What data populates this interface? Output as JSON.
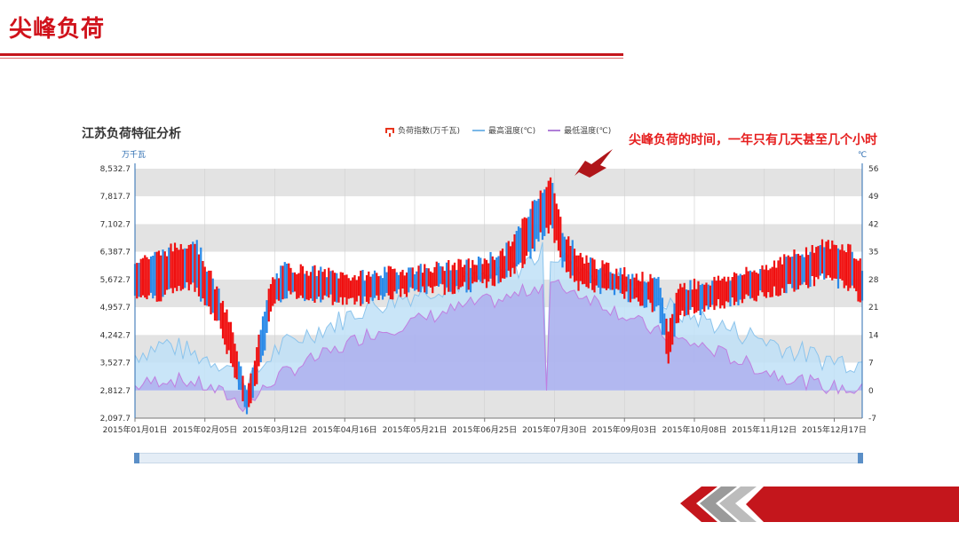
{
  "slide": {
    "title": "尖峰负荷",
    "callout": "尖峰负荷的时间，一年只有几天甚至几个小时"
  },
  "chart_data": {
    "type": "bar",
    "title": "江苏负荷特征分析",
    "left_unit": "万千瓦",
    "right_unit": "℃",
    "legend": [
      {
        "label": "负荷指数(万千瓦)",
        "color": "#e8341c",
        "icon": "bar-icon"
      },
      {
        "label": "最高温度(℃)",
        "color": "#7ab8e8",
        "icon": "line-icon"
      },
      {
        "label": "最低温度(℃)",
        "color": "#b07fd8",
        "icon": "line-icon"
      }
    ],
    "y_left_ticks": [
      "8,532.7",
      "7,817.7",
      "7,102.7",
      "6,387.7",
      "5,672.7",
      "4,957.7",
      "4,242.7",
      "3,527.7",
      "2,812.7",
      "2,097.7"
    ],
    "y_right_ticks": [
      "56",
      "49",
      "42",
      "35",
      "28",
      "21",
      "14",
      "7",
      "0",
      "-7"
    ],
    "x_ticks": [
      "2015年01月01日",
      "2015年02月05日",
      "2015年03月12日",
      "2015年04月16日",
      "2015年05月21日",
      "2015年06月25日",
      "2015年07月30日",
      "2015年09月03日",
      "2015年10月08日",
      "2015年11月12日",
      "2015年12月17日"
    ],
    "ylim_left": [
      2097.7,
      8532.7
    ],
    "ylim_right": [
      -7,
      56
    ],
    "grid": "horizontal-bands",
    "load_profile": [
      [
        0,
        5300,
        6200
      ],
      [
        10,
        5200,
        6300
      ],
      [
        20,
        5400,
        6500
      ],
      [
        30,
        5500,
        6700
      ],
      [
        36,
        5000,
        6000
      ],
      [
        42,
        4500,
        5300
      ],
      [
        48,
        3600,
        4500
      ],
      [
        52,
        2800,
        3500
      ],
      [
        56,
        2300,
        2900
      ],
      [
        60,
        2900,
        3700
      ],
      [
        64,
        3700,
        4600
      ],
      [
        68,
        4800,
        5600
      ],
      [
        75,
        5300,
        6000
      ],
      [
        90,
        5200,
        5900
      ],
      [
        110,
        5100,
        5750
      ],
      [
        130,
        5300,
        5900
      ],
      [
        150,
        5400,
        6000
      ],
      [
        170,
        5500,
        6100
      ],
      [
        185,
        5700,
        6400
      ],
      [
        195,
        6100,
        7200
      ],
      [
        202,
        6700,
        7900
      ],
      [
        208,
        7000,
        8280
      ],
      [
        214,
        6100,
        7000
      ],
      [
        222,
        5500,
        6300
      ],
      [
        235,
        5400,
        6000
      ],
      [
        250,
        5200,
        5800
      ],
      [
        262,
        4900,
        5600
      ],
      [
        267,
        3600,
        4400
      ],
      [
        272,
        4700,
        5500
      ],
      [
        290,
        5000,
        5650
      ],
      [
        310,
        5200,
        5900
      ],
      [
        330,
        5500,
        6300
      ],
      [
        345,
        5700,
        6600
      ],
      [
        358,
        5500,
        6500
      ],
      [
        364,
        5100,
        6000
      ]
    ],
    "tmax_profile": [
      [
        0,
        9
      ],
      [
        15,
        12
      ],
      [
        30,
        9
      ],
      [
        45,
        7
      ],
      [
        55,
        2
      ],
      [
        62,
        5
      ],
      [
        70,
        10
      ],
      [
        85,
        14
      ],
      [
        100,
        17
      ],
      [
        115,
        21
      ],
      [
        130,
        23
      ],
      [
        150,
        26
      ],
      [
        170,
        28
      ],
      [
        185,
        29
      ],
      [
        195,
        32
      ],
      [
        205,
        35
      ],
      [
        215,
        33
      ],
      [
        230,
        30
      ],
      [
        245,
        27
      ],
      [
        260,
        24
      ],
      [
        270,
        20
      ],
      [
        285,
        18
      ],
      [
        300,
        15
      ],
      [
        315,
        13
      ],
      [
        330,
        10
      ],
      [
        345,
        8
      ],
      [
        364,
        7
      ]
    ],
    "tmin_profile": [
      [
        0,
        1
      ],
      [
        15,
        3
      ],
      [
        30,
        2
      ],
      [
        45,
        -1
      ],
      [
        55,
        -4
      ],
      [
        62,
        -1
      ],
      [
        70,
        3
      ],
      [
        85,
        7
      ],
      [
        100,
        10
      ],
      [
        115,
        14
      ],
      [
        130,
        16
      ],
      [
        150,
        19
      ],
      [
        170,
        22
      ],
      [
        185,
        23
      ],
      [
        195,
        25
      ],
      [
        205,
        27
      ],
      [
        215,
        26
      ],
      [
        230,
        23
      ],
      [
        245,
        19
      ],
      [
        260,
        15
      ],
      [
        270,
        13
      ],
      [
        285,
        11
      ],
      [
        300,
        8
      ],
      [
        315,
        5
      ],
      [
        330,
        3
      ],
      [
        345,
        1
      ],
      [
        364,
        0
      ]
    ],
    "anomaly_day": 207,
    "anomaly_value": 0
  }
}
